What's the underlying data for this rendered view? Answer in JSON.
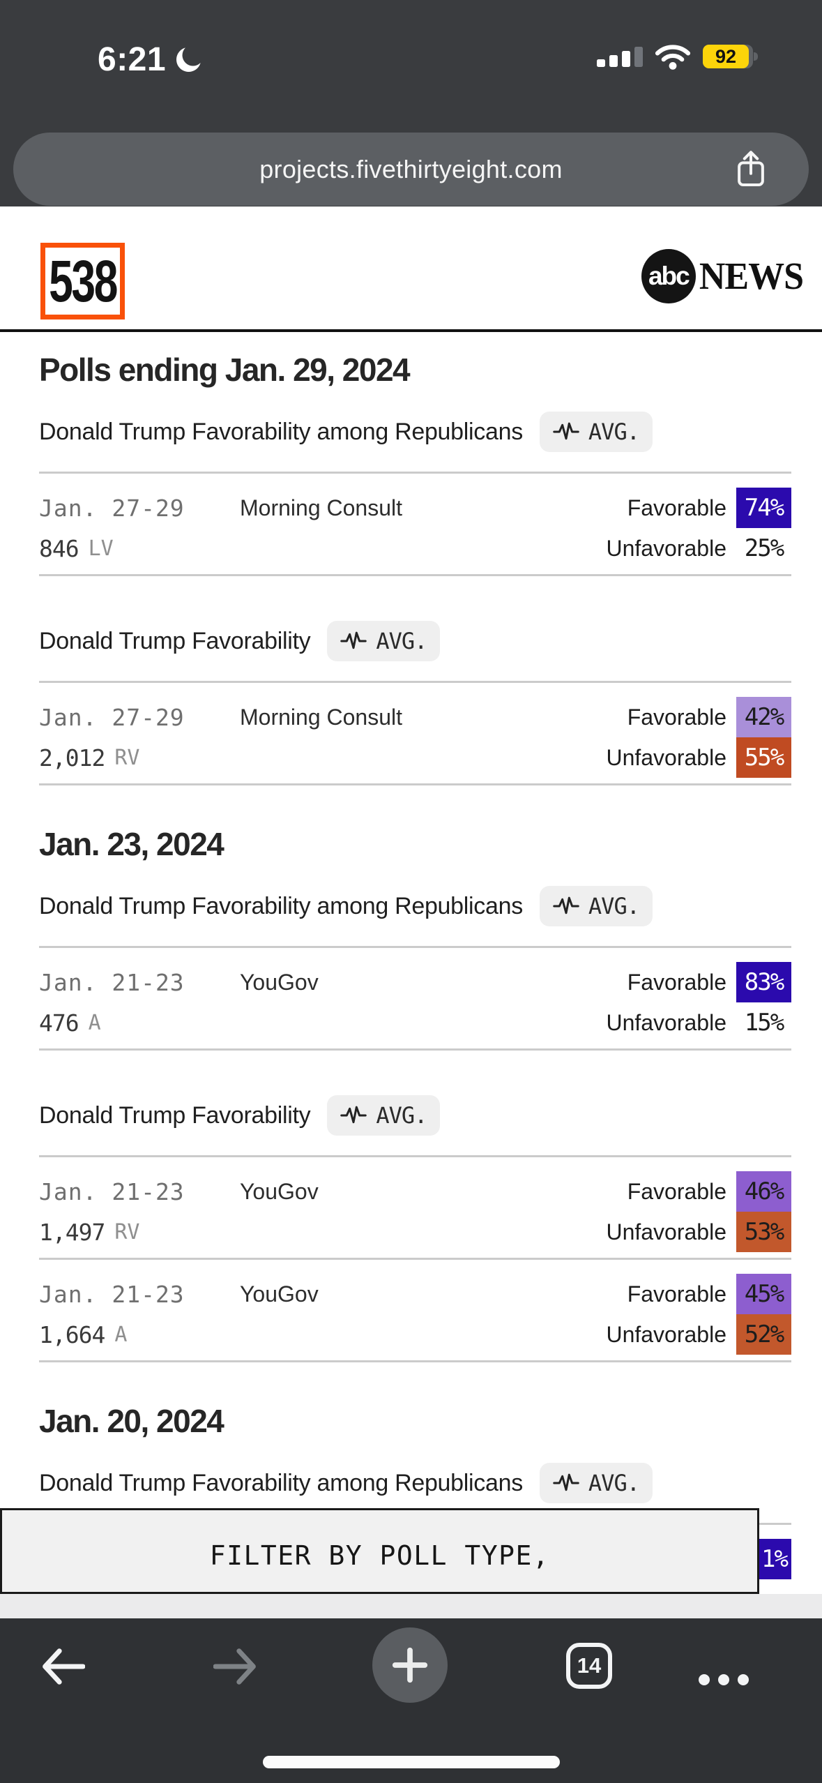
{
  "status_bar": {
    "time": "6:21",
    "battery_percent": "92"
  },
  "url_bar": {
    "url": "projects.fivethirtyeight.com"
  },
  "site_header": {
    "logo_text": "538",
    "abc_circle_text": "abc",
    "news_text": "NEWS"
  },
  "filter": {
    "label": "FILTER BY POLL TYPE,"
  },
  "bottom_nav": {
    "tab_count": "14"
  },
  "colors": {
    "favorable_strong": "#2b0aad",
    "favorable_light": "#a98fd9",
    "favorable_mid": "#8d5ecf",
    "unfavorable_strong": "#c04b22",
    "unfavorable_mid": "#c2582c",
    "logo_orange": "#f95109",
    "battery_yellow": "#fcd40a"
  },
  "sections": [
    {
      "kind": "date_heading",
      "text": "Polls ending Jan. 29, 2024"
    },
    {
      "kind": "group",
      "title": "Donald Trump Favorability among Republicans",
      "avg_label": "AVG.",
      "rows": [
        {
          "date": "Jan. 27-29",
          "pollster": "Morning Consult",
          "sample": "846",
          "sample_type": "LV",
          "results": [
            {
              "label": "Favorable",
              "value": "74%",
              "bg": "#2b0aad",
              "fg": "#ffffff"
            },
            {
              "label": "Unfavorable",
              "value": "25%",
              "bg": "",
              "fg": "#1d1d1d"
            }
          ]
        }
      ]
    },
    {
      "kind": "group",
      "title": "Donald Trump Favorability",
      "avg_label": "AVG.",
      "rows": [
        {
          "date": "Jan. 27-29",
          "pollster": "Morning Consult",
          "sample": "2,012",
          "sample_type": "RV",
          "results": [
            {
              "label": "Favorable",
              "value": "42%",
              "bg": "#a98fd9",
              "fg": "#1d1d1d"
            },
            {
              "label": "Unfavorable",
              "value": "55%",
              "bg": "#c04b22",
              "fg": "#ffffff"
            }
          ]
        }
      ]
    },
    {
      "kind": "date_heading",
      "text": "Jan. 23, 2024"
    },
    {
      "kind": "group",
      "title": "Donald Trump Favorability among Republicans",
      "avg_label": "AVG.",
      "rows": [
        {
          "date": "Jan. 21-23",
          "pollster": "YouGov",
          "sample": "476",
          "sample_type": "A",
          "results": [
            {
              "label": "Favorable",
              "value": "83%",
              "bg": "#2b0aad",
              "fg": "#ffffff"
            },
            {
              "label": "Unfavorable",
              "value": "15%",
              "bg": "",
              "fg": "#1d1d1d"
            }
          ]
        }
      ]
    },
    {
      "kind": "group",
      "title": "Donald Trump Favorability",
      "avg_label": "AVG.",
      "rows": [
        {
          "date": "Jan. 21-23",
          "pollster": "YouGov",
          "sample": "1,497",
          "sample_type": "RV",
          "results": [
            {
              "label": "Favorable",
              "value": "46%",
              "bg": "#8d5ecf",
              "fg": "#1d1d1d"
            },
            {
              "label": "Unfavorable",
              "value": "53%",
              "bg": "#c2582c",
              "fg": "#1d1d1d"
            }
          ]
        },
        {
          "date": "Jan. 21-23",
          "pollster": "YouGov",
          "sample": "1,664",
          "sample_type": "A",
          "results": [
            {
              "label": "Favorable",
              "value": "45%",
              "bg": "#8d5ecf",
              "fg": "#1d1d1d"
            },
            {
              "label": "Unfavorable",
              "value": "52%",
              "bg": "#c2582c",
              "fg": "#1d1d1d"
            }
          ]
        }
      ]
    },
    {
      "kind": "date_heading",
      "text": "Jan. 20, 2024"
    },
    {
      "kind": "group",
      "title": "Donald Trump Favorability among Republicans",
      "avg_label": "AVG.",
      "partial": true,
      "rows": [
        {
          "partial": true,
          "results": [
            {
              "label": "",
              "value": "1%",
              "bg": "#2b0aad",
              "fg": "#ffffff"
            }
          ]
        }
      ]
    }
  ]
}
